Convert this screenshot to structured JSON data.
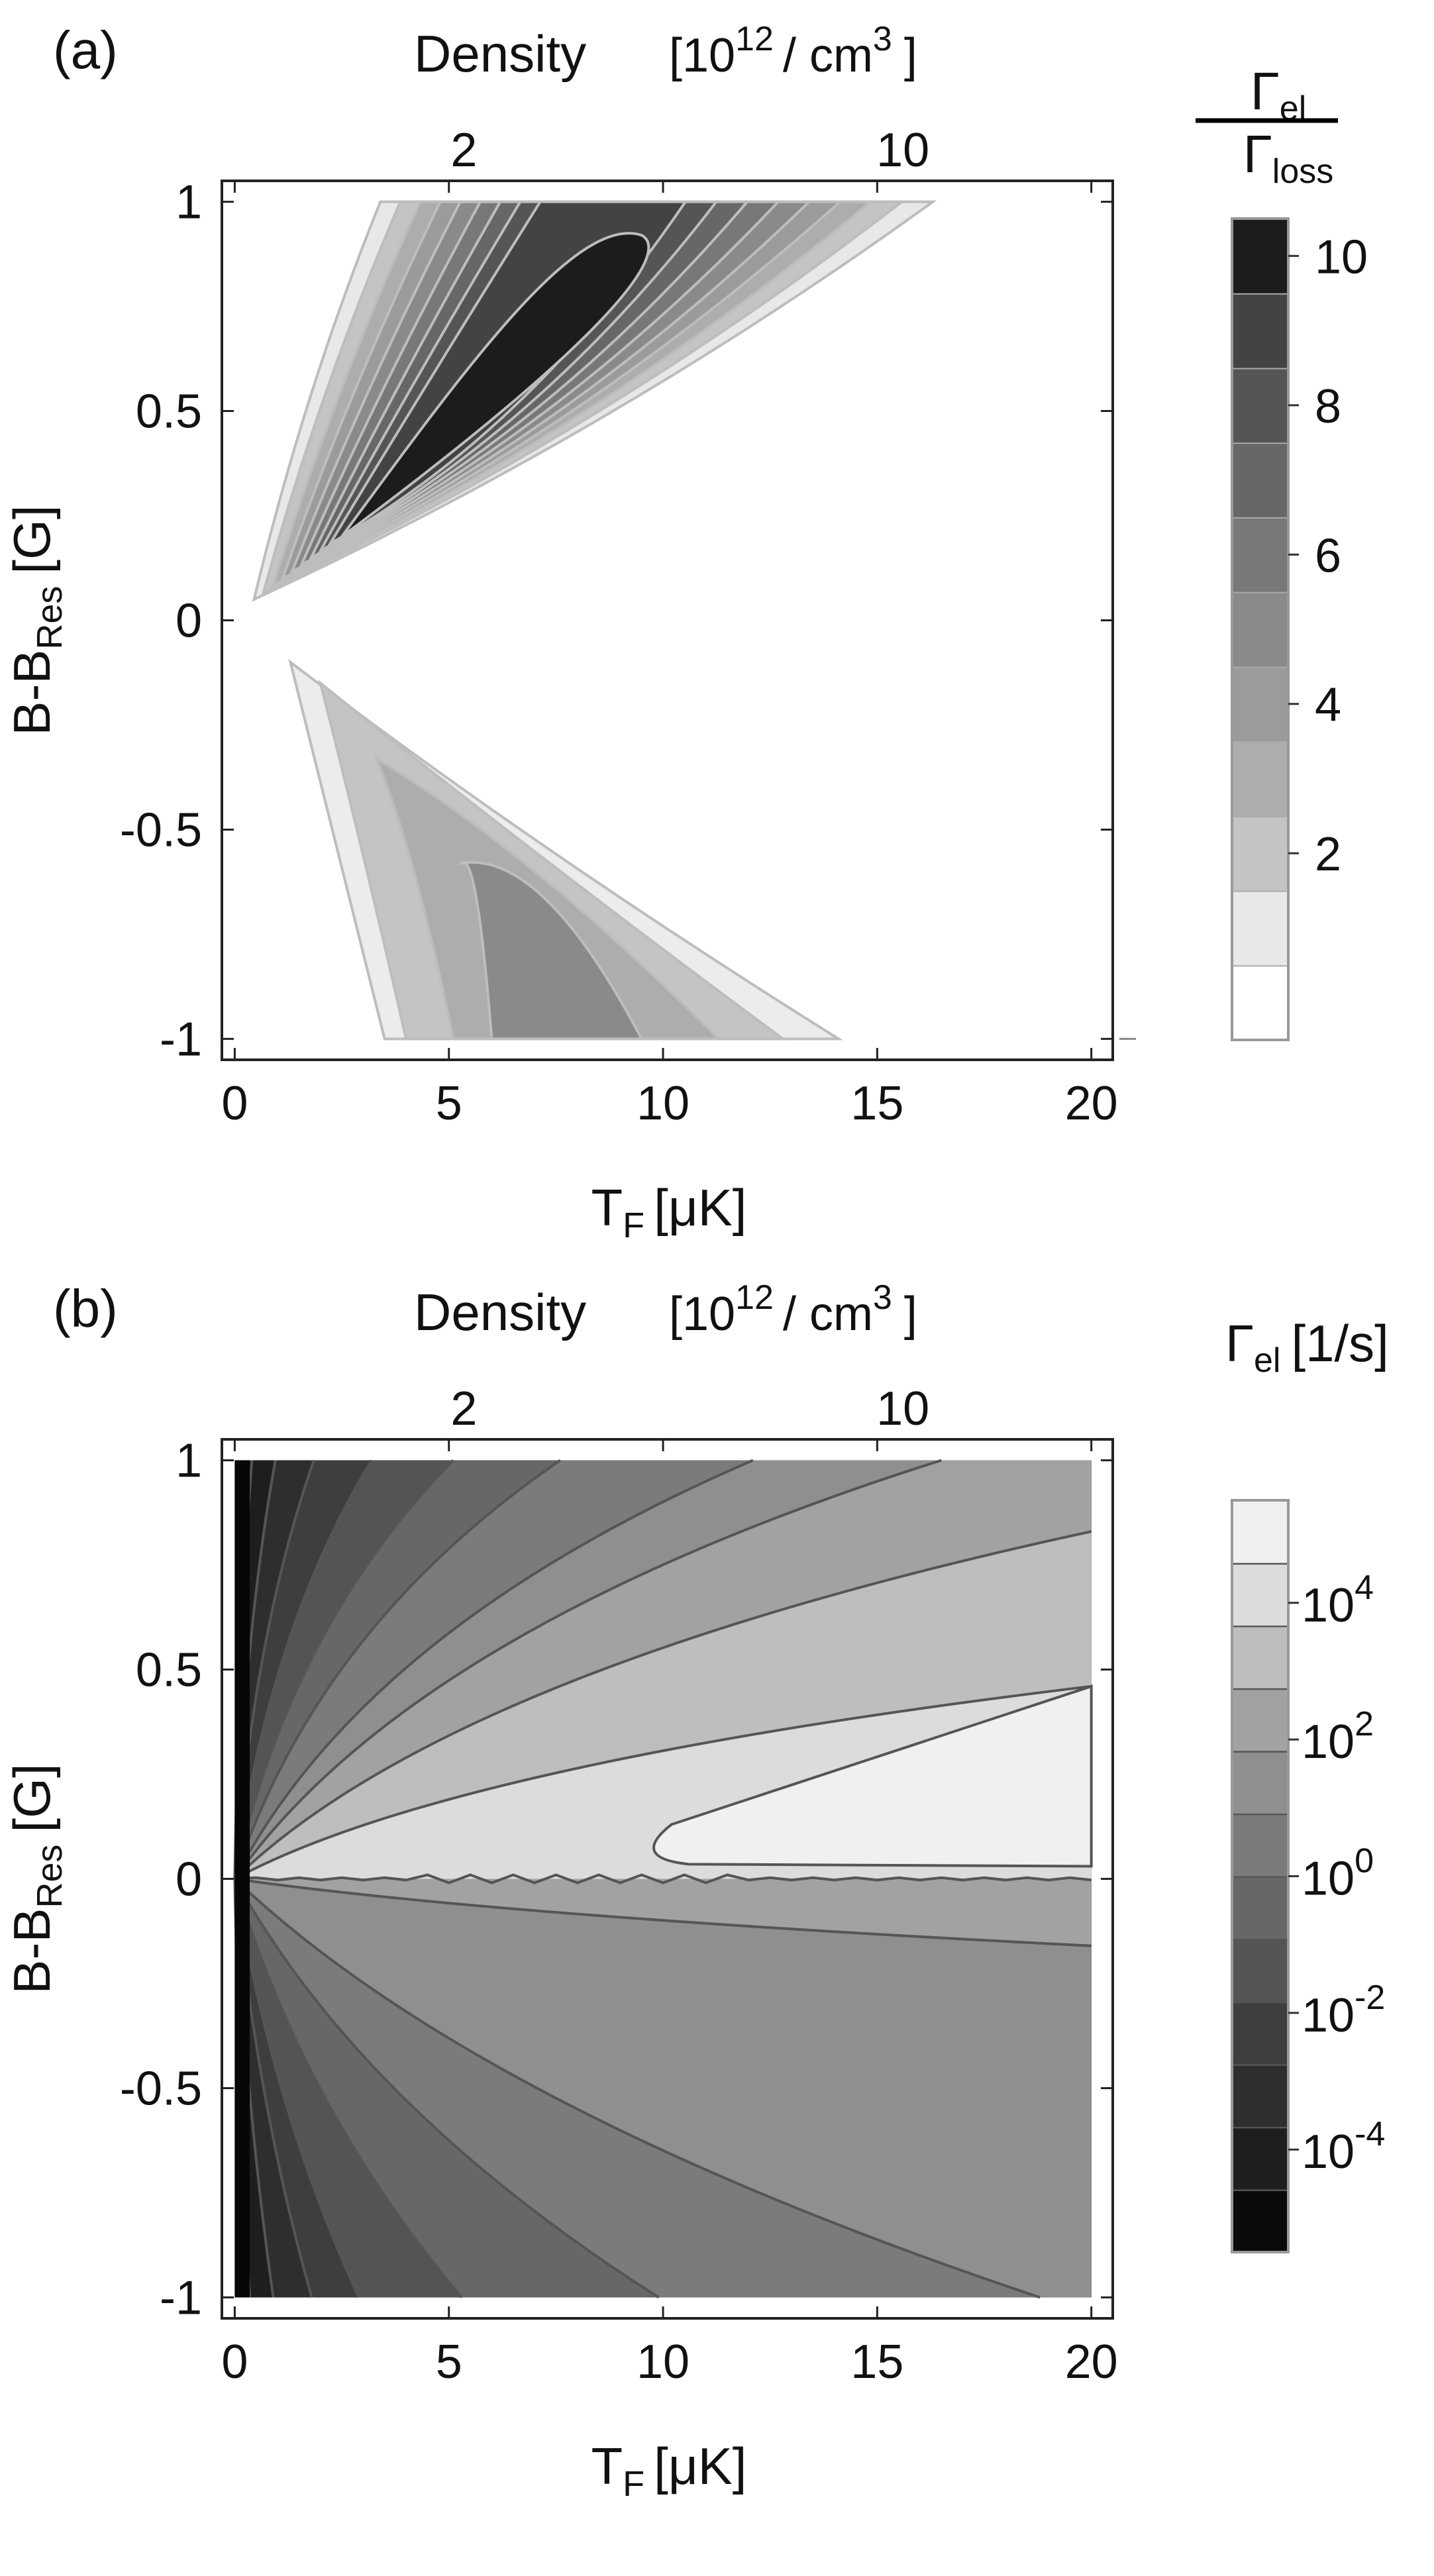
{
  "chart_data": [
    {
      "type": "heatmap",
      "panel_label": "(a)",
      "top_axis": {
        "label": "Density",
        "unit_parts": [
          "[10",
          "12",
          "/ cm",
          "3",
          "]"
        ],
        "ticks": [
          "2",
          "10"
        ]
      },
      "x": {
        "label_main": "T",
        "label_sub": "F",
        "label_unit": "[μK]",
        "ticks": [
          "0",
          "5",
          "10",
          "15",
          "20"
        ],
        "tick_values": [
          0,
          5,
          10,
          15,
          20
        ],
        "range": [
          -0.3,
          20.5
        ]
      },
      "y": {
        "label_main": "B-B",
        "label_sub": "Res",
        "label_unit": "[G]",
        "ticks": [
          "1",
          "0.5",
          "0",
          "-0.5",
          "-1"
        ],
        "tick_values": [
          1,
          0.5,
          0,
          -0.5,
          -1
        ],
        "range": [
          -1.05,
          1.05
        ]
      },
      "colorbar": {
        "title_num": "Γ",
        "title_num_sub": "el",
        "title_den": "Γ",
        "title_den_sub": "loss",
        "ticks": [
          "2",
          "4",
          "6",
          "8",
          "10"
        ],
        "tick_values": [
          2,
          4,
          6,
          8,
          10
        ],
        "levels": [
          0,
          1,
          2,
          3,
          4,
          5,
          6,
          7,
          8,
          9,
          10,
          11
        ],
        "colors": [
          "#ffffff",
          "#e8e8e8",
          "#c4c4c4",
          "#adadad",
          "#9b9b9b",
          "#8a8a8a",
          "#787878",
          "#676767",
          "#555555",
          "#434343",
          "#1c1c1c"
        ]
      },
      "regions": [
        {
          "name": "upper lobe, outer",
          "level": 1,
          "tip": [
            0.45,
            0.05
          ],
          "top_edge_x": [
            3.4,
            16.3
          ],
          "color": "#ececec"
        },
        {
          "name": "upper lobe, core",
          "level": 10,
          "tip": [
            2.5,
            0.2
          ],
          "max_point": [
            9.5,
            0.9
          ]
        },
        {
          "name": "lower lobe, outer",
          "level": 1,
          "tip": [
            1.3,
            -0.1
          ],
          "bottom_edge_x": [
            3.5,
            14.1
          ]
        },
        {
          "name": "lower lobe, core",
          "level": 4,
          "tip": [
            5.5,
            -0.6
          ],
          "bottom_edge_x": [
            6.0,
            9.5
          ]
        }
      ]
    },
    {
      "type": "heatmap",
      "panel_label": "(b)",
      "top_axis": {
        "label": "Density",
        "unit_parts": [
          "[10",
          "12",
          "/ cm",
          "3",
          "]"
        ],
        "ticks": [
          "2",
          "10"
        ]
      },
      "x": {
        "label_main": "T",
        "label_sub": "F",
        "label_unit": "[μK]",
        "ticks": [
          "0",
          "5",
          "10",
          "15",
          "20"
        ],
        "tick_values": [
          0,
          5,
          10,
          15,
          20
        ],
        "range": [
          -0.3,
          20.5
        ]
      },
      "y": {
        "label_main": "B-B",
        "label_sub": "Res",
        "label_unit": "[G]",
        "ticks": [
          "1",
          "0.5",
          "0",
          "-0.5",
          "-1"
        ],
        "tick_values": [
          1,
          0.5,
          0,
          -0.5,
          -1
        ],
        "range": [
          -1.05,
          1.05
        ]
      },
      "colorbar": {
        "title": "Γ",
        "title_sub": "el",
        "title_unit": "[1/s]",
        "tick_bases": [
          "10",
          "10",
          "10",
          "10",
          "10"
        ],
        "tick_exponents": [
          "4",
          "2",
          "0",
          "-2",
          "-4"
        ],
        "tick_log_values": [
          4,
          2,
          0,
          -2,
          -4
        ],
        "log_range": [
          -5.5,
          5.5
        ],
        "colors": [
          "#0a0a0a",
          "#1e1e1e",
          "#2e2e2e",
          "#3e3e3e",
          "#545454",
          "#676767",
          "#7b7b7b",
          "#8f8f8f",
          "#a2a2a2",
          "#bebebe",
          "#dcdcdc",
          "#f0f0f0"
        ]
      },
      "contours_upper": [
        {
          "level": 1,
          "end": [
            0.4,
            1.0
          ]
        },
        {
          "level": 2,
          "end": [
            0.95,
            1.0
          ]
        },
        {
          "level": 3,
          "end": [
            1.85,
            1.0
          ]
        },
        {
          "level": 4,
          "end": [
            3.2,
            1.0
          ]
        },
        {
          "level": 5,
          "end": [
            5.1,
            1.0
          ]
        },
        {
          "level": 6,
          "end": [
            7.6,
            1.0
          ]
        },
        {
          "level": 7,
          "end": [
            12.1,
            1.0
          ]
        },
        {
          "level": 8,
          "end": [
            16.5,
            1.0
          ]
        },
        {
          "level": 9,
          "end": [
            20.0,
            0.83
          ]
        },
        {
          "level": 10,
          "end": [
            20.0,
            0.46
          ]
        }
      ],
      "contours_lower": [
        {
          "level": 1,
          "end": [
            0.35,
            -1.0
          ]
        },
        {
          "level": 2,
          "end": [
            0.9,
            -1.0
          ]
        },
        {
          "level": 3,
          "end": [
            1.8,
            -1.0
          ]
        },
        {
          "level": 4,
          "end": [
            2.9,
            -1.0
          ]
        },
        {
          "level": 5,
          "end": [
            5.3,
            -1.0
          ]
        },
        {
          "level": 6,
          "end": [
            9.9,
            -1.0
          ]
        },
        {
          "level": 7,
          "end": [
            18.8,
            -1.0
          ]
        },
        {
          "level": 8,
          "end": [
            20.0,
            -0.16
          ]
        }
      ],
      "inner_lobe": {
        "level": 11,
        "tip": [
          9.8,
          0.07
        ],
        "ends": [
          [
            20.0,
            0.46
          ],
          [
            20.0,
            0.03
          ]
        ]
      }
    }
  ]
}
